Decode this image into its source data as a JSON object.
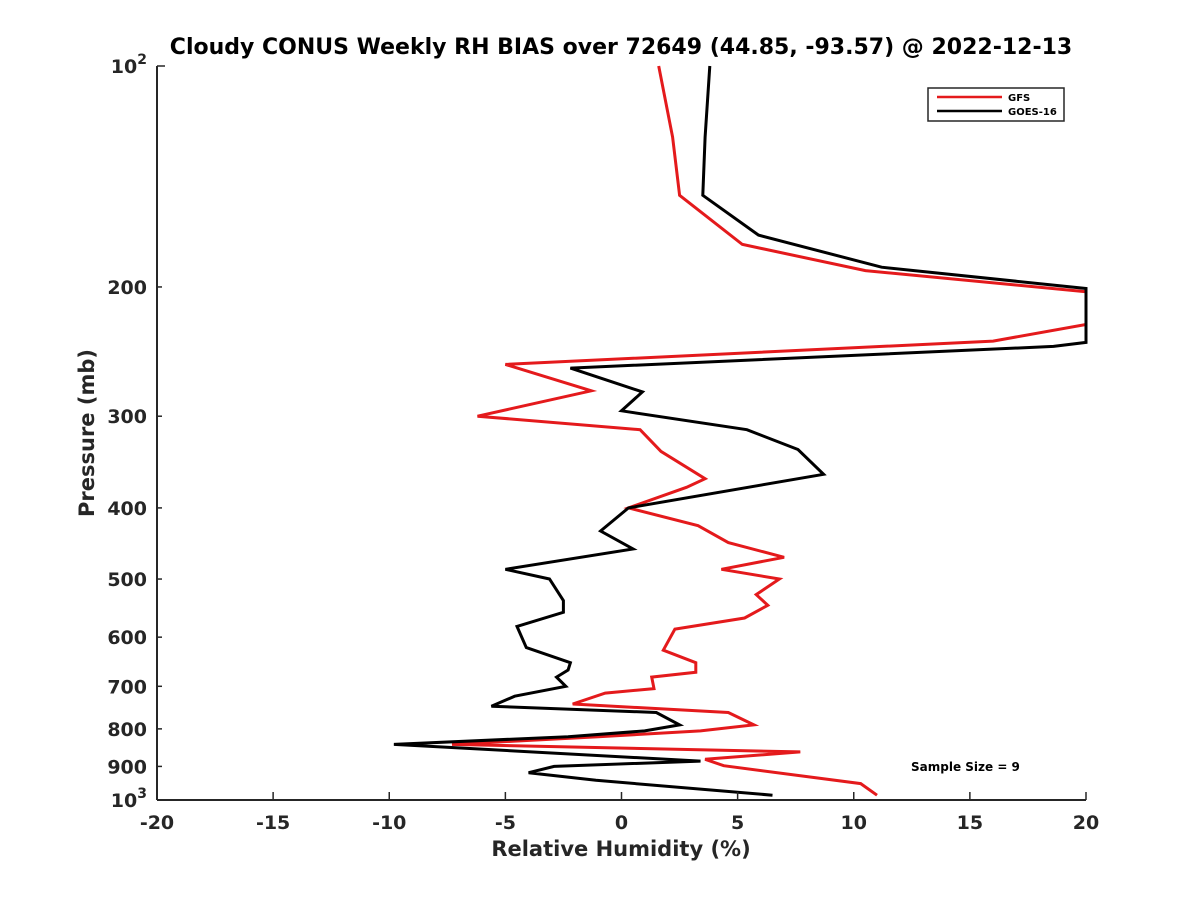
{
  "chart_data": {
    "type": "line",
    "title": "Cloudy CONUS Weekly RH BIAS over 72649 (44.85, -93.57) @ 2022-12-13",
    "xlabel": "Relative Humidity (%)",
    "ylabel": "Pressure (mb)",
    "xlim": [
      -20,
      20
    ],
    "ylim": [
      100,
      1000
    ],
    "yscale": "log",
    "y_reversed": true,
    "grid": false,
    "legend_position": "top-right",
    "x_ticks": [
      "-20",
      "-15",
      "-10",
      "-5",
      "0",
      "5",
      "10",
      "15",
      "20"
    ],
    "y_ticks": [
      {
        "value": 100,
        "base": "10",
        "exp": "2"
      },
      {
        "value": 200,
        "label": "200"
      },
      {
        "value": 300,
        "label": "300"
      },
      {
        "value": 400,
        "label": "400"
      },
      {
        "value": 500,
        "label": "500"
      },
      {
        "value": 600,
        "label": "600"
      },
      {
        "value": 700,
        "label": "700"
      },
      {
        "value": 800,
        "label": "800"
      },
      {
        "value": 900,
        "label": "900"
      },
      {
        "value": 1000,
        "base": "10",
        "exp": "3"
      }
    ],
    "annotation": "Sample Size = 9",
    "series": [
      {
        "name": "GFS",
        "color": "#e41a1c",
        "points": [
          {
            "x": 1.6,
            "y": 100
          },
          {
            "x": 2.2,
            "y": 125
          },
          {
            "x": 2.5,
            "y": 150
          },
          {
            "x": 5.2,
            "y": 175
          },
          {
            "x": 10.5,
            "y": 190
          },
          {
            "x": 20.0,
            "y": 203
          },
          {
            "x": 20.0,
            "y": 225
          },
          {
            "x": 16.0,
            "y": 237
          },
          {
            "x": -5.0,
            "y": 255
          },
          {
            "x": -1.3,
            "y": 277
          },
          {
            "x": -6.2,
            "y": 300
          },
          {
            "x": 0.8,
            "y": 313
          },
          {
            "x": 1.7,
            "y": 335
          },
          {
            "x": 3.6,
            "y": 365
          },
          {
            "x": 2.8,
            "y": 375
          },
          {
            "x": 0.3,
            "y": 400
          },
          {
            "x": 3.3,
            "y": 423
          },
          {
            "x": 4.6,
            "y": 446
          },
          {
            "x": 7.0,
            "y": 467
          },
          {
            "x": 4.3,
            "y": 485
          },
          {
            "x": 6.8,
            "y": 500
          },
          {
            "x": 5.8,
            "y": 525
          },
          {
            "x": 6.3,
            "y": 543
          },
          {
            "x": 5.3,
            "y": 565
          },
          {
            "x": 2.3,
            "y": 585
          },
          {
            "x": 1.8,
            "y": 625
          },
          {
            "x": 3.2,
            "y": 650
          },
          {
            "x": 3.2,
            "y": 670
          },
          {
            "x": 1.3,
            "y": 680
          },
          {
            "x": 1.4,
            "y": 705
          },
          {
            "x": -0.7,
            "y": 715
          },
          {
            "x": -2.1,
            "y": 740
          },
          {
            "x": 4.6,
            "y": 760
          },
          {
            "x": 5.7,
            "y": 790
          },
          {
            "x": 3.4,
            "y": 805
          },
          {
            "x": -1.0,
            "y": 820
          },
          {
            "x": -7.3,
            "y": 840
          },
          {
            "x": 7.7,
            "y": 860
          },
          {
            "x": 3.6,
            "y": 880
          },
          {
            "x": 4.4,
            "y": 898
          },
          {
            "x": 10.3,
            "y": 950
          },
          {
            "x": 11.0,
            "y": 985
          }
        ]
      },
      {
        "name": "GOES-16",
        "color": "#000000",
        "points": [
          {
            "x": 3.8,
            "y": 100
          },
          {
            "x": 3.6,
            "y": 125
          },
          {
            "x": 3.5,
            "y": 150
          },
          {
            "x": 5.9,
            "y": 170
          },
          {
            "x": 11.2,
            "y": 188
          },
          {
            "x": 20.0,
            "y": 201
          },
          {
            "x": 20.0,
            "y": 238
          },
          {
            "x": 18.6,
            "y": 241
          },
          {
            "x": -2.2,
            "y": 258
          },
          {
            "x": 0.9,
            "y": 278
          },
          {
            "x": 0.0,
            "y": 295
          },
          {
            "x": 5.4,
            "y": 313
          },
          {
            "x": 7.6,
            "y": 333
          },
          {
            "x": 8.7,
            "y": 360
          },
          {
            "x": 0.3,
            "y": 400
          },
          {
            "x": -0.9,
            "y": 430
          },
          {
            "x": 0.5,
            "y": 455
          },
          {
            "x": -5.0,
            "y": 485
          },
          {
            "x": -3.1,
            "y": 500
          },
          {
            "x": -2.5,
            "y": 535
          },
          {
            "x": -2.5,
            "y": 555
          },
          {
            "x": -4.5,
            "y": 580
          },
          {
            "x": -4.1,
            "y": 620
          },
          {
            "x": -2.2,
            "y": 650
          },
          {
            "x": -2.3,
            "y": 665
          },
          {
            "x": -2.8,
            "y": 680
          },
          {
            "x": -2.4,
            "y": 700
          },
          {
            "x": -4.6,
            "y": 722
          },
          {
            "x": -5.6,
            "y": 745
          },
          {
            "x": 1.5,
            "y": 760
          },
          {
            "x": 2.5,
            "y": 790
          },
          {
            "x": 1.0,
            "y": 805
          },
          {
            "x": -2.3,
            "y": 820
          },
          {
            "x": -9.8,
            "y": 840
          },
          {
            "x": 3.4,
            "y": 885
          },
          {
            "x": -2.9,
            "y": 900
          },
          {
            "x": -4.0,
            "y": 918
          },
          {
            "x": -1.1,
            "y": 940
          },
          {
            "x": 6.5,
            "y": 985
          }
        ]
      }
    ]
  }
}
